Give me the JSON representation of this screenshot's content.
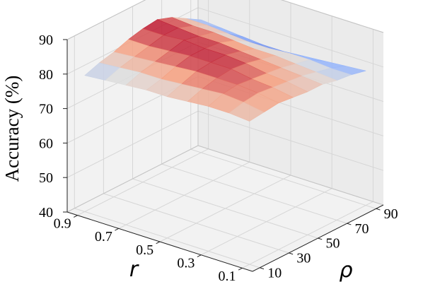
{
  "chart_data": {
    "type": "surface3d",
    "title": "",
    "xlabel": "r",
    "ylabel": "ρ",
    "zlabel": "Accuracy (%)",
    "x_ticks": [
      "0.1",
      "0.3",
      "0.5",
      "0.7",
      "0.9"
    ],
    "y_ticks": [
      "10",
      "30",
      "50",
      "70",
      "90"
    ],
    "z_ticks": [
      "40",
      "50",
      "60",
      "70",
      "80",
      "90"
    ],
    "xlim": [
      0.05,
      0.95
    ],
    "ylim": [
      5,
      95
    ],
    "zlim": [
      40,
      90
    ],
    "grid": true,
    "colormap": "coolwarm",
    "x": [
      0.1,
      0.2,
      0.3,
      0.4,
      0.5,
      0.6,
      0.7,
      0.8,
      0.9
    ],
    "y": [
      10,
      20,
      30,
      40,
      50,
      60,
      70,
      80,
      90
    ],
    "z": [
      [
        81.5,
        82.0,
        82.5,
        82.0,
        81.5,
        81.5,
        80.5,
        80.0,
        79.0
      ],
      [
        82.0,
        83.0,
        83.5,
        83.0,
        82.5,
        82.0,
        81.0,
        80.0,
        78.5
      ],
      [
        82.0,
        83.5,
        84.0,
        83.5,
        83.0,
        82.5,
        81.5,
        80.5,
        78.0
      ],
      [
        81.5,
        83.0,
        84.0,
        84.5,
        84.0,
        83.0,
        82.0,
        80.5,
        77.5
      ],
      [
        81.0,
        82.5,
        84.0,
        84.5,
        84.5,
        83.5,
        82.0,
        80.0,
        77.0
      ],
      [
        81.0,
        82.0,
        83.5,
        84.5,
        84.5,
        84.0,
        82.5,
        80.0,
        77.0
      ],
      [
        80.5,
        82.0,
        83.0,
        84.0,
        85.0,
        84.0,
        83.0,
        80.5,
        77.5
      ],
      [
        80.0,
        81.5,
        82.5,
        83.5,
        84.5,
        84.5,
        83.0,
        81.0,
        78.0
      ],
      [
        79.5,
        81.0,
        82.0,
        83.5,
        84.5,
        85.0,
        83.5,
        81.0,
        78.5
      ]
    ]
  }
}
